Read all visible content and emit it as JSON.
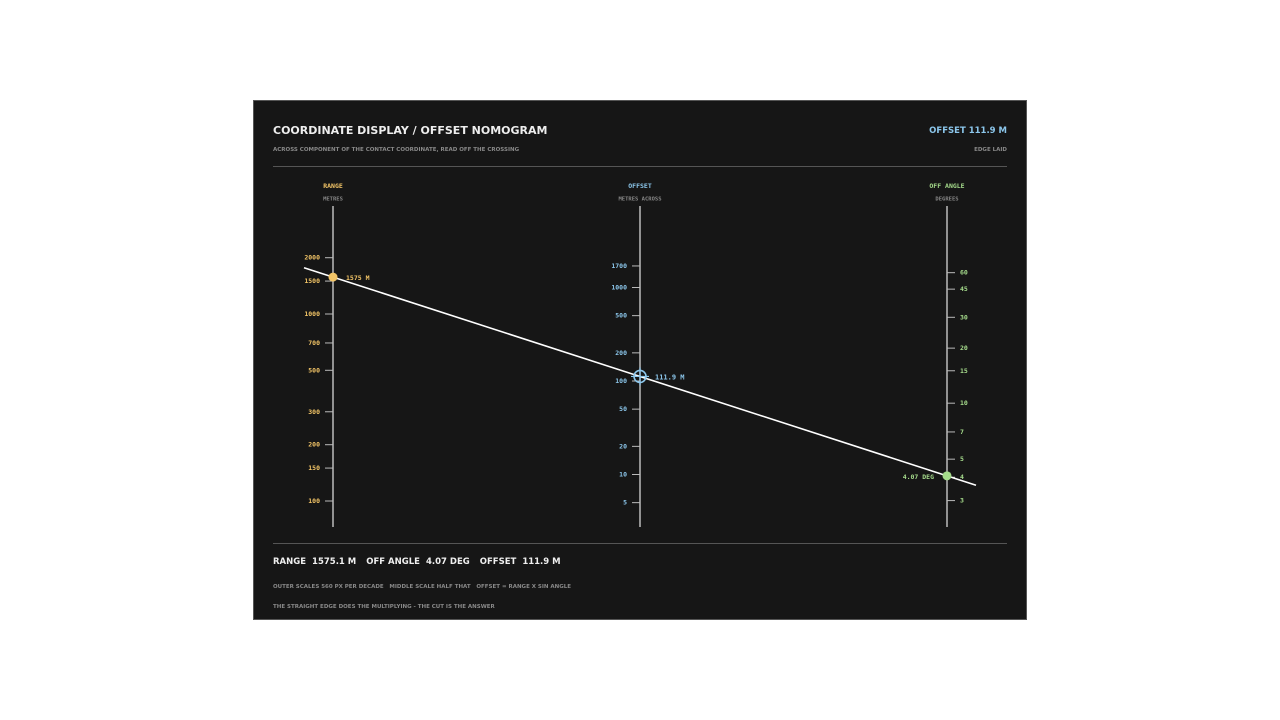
{
  "header": {
    "title": "COORDINATE DISPLAY / OFFSET NOMOGRAM",
    "readout": "OFFSET 111.9 M",
    "subtitle": "ACROSS COMPONENT OF THE CONTACT COORDINATE, READ OFF THE CROSSING",
    "status": "EDGE LAID"
  },
  "scales": [
    {
      "name": "RANGE",
      "unit": "METRES",
      "color": "#f3c567",
      "ticks": [
        100,
        150,
        200,
        300,
        500,
        700,
        1000,
        1500,
        2000
      ],
      "reading": 1575.1,
      "reading_label": "1575 M"
    },
    {
      "name": "OFFSET",
      "unit": "METRES ACROSS",
      "color": "#8cc7ec",
      "ticks": [
        5,
        10,
        20,
        50,
        100,
        200,
        500,
        1000,
        1700
      ],
      "reading": 111.9,
      "reading_label": "111.9 M"
    },
    {
      "name": "OFF ANGLE",
      "unit": "DEGREES",
      "color": "#a6dc8c",
      "ticks": [
        3,
        4,
        5,
        7,
        10,
        15,
        20,
        30,
        45,
        60
      ],
      "reading": 4.07,
      "reading_label": "4.07 DEG"
    }
  ],
  "footer": {
    "readouts": [
      {
        "label": "RANGE",
        "value": "1575.1 M"
      },
      {
        "label": "OFF ANGLE",
        "value": "4.07 DEG"
      },
      {
        "label": "OFFSET",
        "value": "111.9 M"
      }
    ],
    "notes": [
      "OUTER SCALES 560 PX PER DECADE   MIDDLE SCALE HALF THAT   OFFSET = RANGE X SIN ANGLE",
      "THE STRAIGHT EDGE DOES THE MULTIPLYING - THE CUT IS THE ANSWER"
    ]
  }
}
